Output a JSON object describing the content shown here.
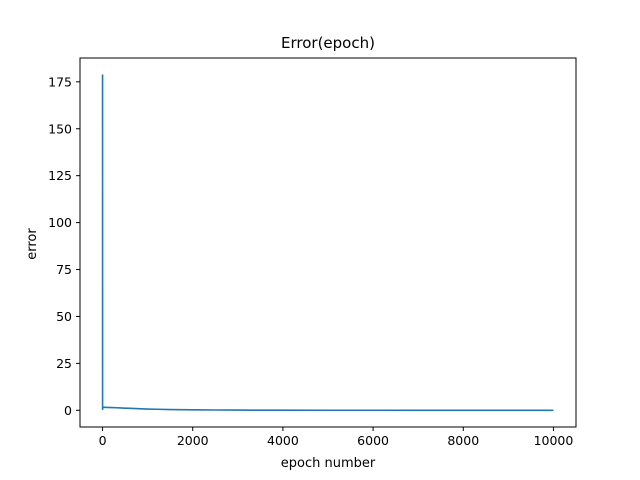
{
  "chart_data": {
    "type": "line",
    "title": "Error(epoch)",
    "xlabel": "epoch number",
    "ylabel": "error",
    "xlim": [
      -500,
      10500
    ],
    "ylim": [
      -8.9,
      187.7
    ],
    "xticks": [
      0,
      2000,
      4000,
      6000,
      8000,
      10000
    ],
    "yticks": [
      0,
      25,
      50,
      75,
      100,
      125,
      150,
      175
    ],
    "grid": false,
    "color": "#1f77b4",
    "series": [
      {
        "x": [
          0,
          1,
          2,
          3,
          5,
          10,
          20,
          50,
          100,
          200,
          300,
          400,
          500,
          600,
          800,
          1000,
          1200,
          1500,
          2000,
          2500,
          3000,
          4000,
          5000,
          6000,
          7000,
          8000,
          9000,
          10000
        ],
        "y": [
          178.9,
          0.5,
          0.8,
          1.2,
          1.5,
          1.6,
          1.6,
          1.6,
          1.55,
          1.45,
          1.35,
          1.25,
          1.15,
          1.05,
          0.85,
          0.68,
          0.55,
          0.4,
          0.25,
          0.16,
          0.1,
          0.05,
          0.03,
          0.02,
          0.015,
          0.01,
          0.008,
          0.006
        ]
      }
    ]
  }
}
